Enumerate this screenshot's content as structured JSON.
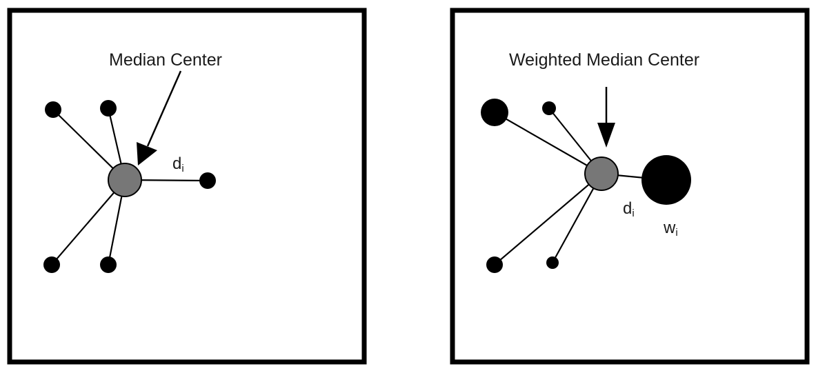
{
  "left_panel": {
    "label": "Median Center",
    "distance_symbol": "d",
    "distance_subscript": "i"
  },
  "right_panel": {
    "label": "Weighted Median Center",
    "distance_symbol": "d",
    "distance_subscript": "i",
    "weight_symbol": "w",
    "weight_subscript": "i"
  },
  "colors": {
    "center_fill": "#777777",
    "point_fill": "#000000",
    "frame": "#000000"
  }
}
